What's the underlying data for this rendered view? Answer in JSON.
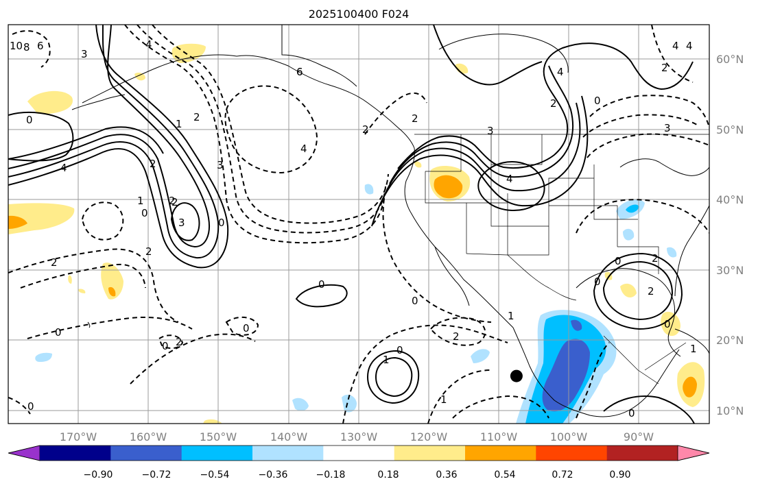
{
  "title": "2025100400 F024",
  "map": {
    "lon_range": [
      -180,
      -80
    ],
    "lat_range": [
      8,
      65
    ],
    "lat_ticks": [
      "60°N",
      "50°N",
      "40°N",
      "30°N",
      "20°N",
      "10°N"
    ],
    "lon_ticks": [
      "170°W",
      "160°W",
      "150°W",
      "140°W",
      "130°W",
      "120°W",
      "110°W",
      "100°W",
      "90°W"
    ],
    "grid": true
  },
  "colorbar": {
    "colors": [
      "#9932cc",
      "#00008b",
      "#3a5fcd",
      "#00bfff",
      "#b0e2ff",
      "#ffffff",
      "#ffec8b",
      "#ffa500",
      "#ff4500",
      "#b22222",
      "#ff88aa"
    ],
    "tick_labels": [
      "−0.90",
      "−0.72",
      "−0.54",
      "−0.36",
      "−0.18",
      "0.18",
      "0.36",
      "0.54",
      "0.72",
      "0.90"
    ],
    "extend": "both"
  },
  "contour_labels": [
    "10",
    "8",
    "6",
    "4",
    "3",
    "6",
    "0",
    "2",
    "4",
    "1",
    "2",
    "0",
    "3",
    "2",
    "0",
    "1",
    "3",
    "2",
    "6",
    "4",
    "2",
    "0",
    "2",
    "4",
    "3",
    "2",
    "2",
    "2",
    "4",
    "4",
    "4",
    "3",
    "2",
    "0",
    "1",
    "0",
    "2",
    "0",
    "0",
    "1",
    "1",
    "2",
    "0",
    "0",
    "0",
    "0",
    "2",
    "0",
    "0",
    "1",
    "2",
    "0"
  ],
  "marker": {
    "lon": -107.5,
    "lat": 14.8
  }
}
